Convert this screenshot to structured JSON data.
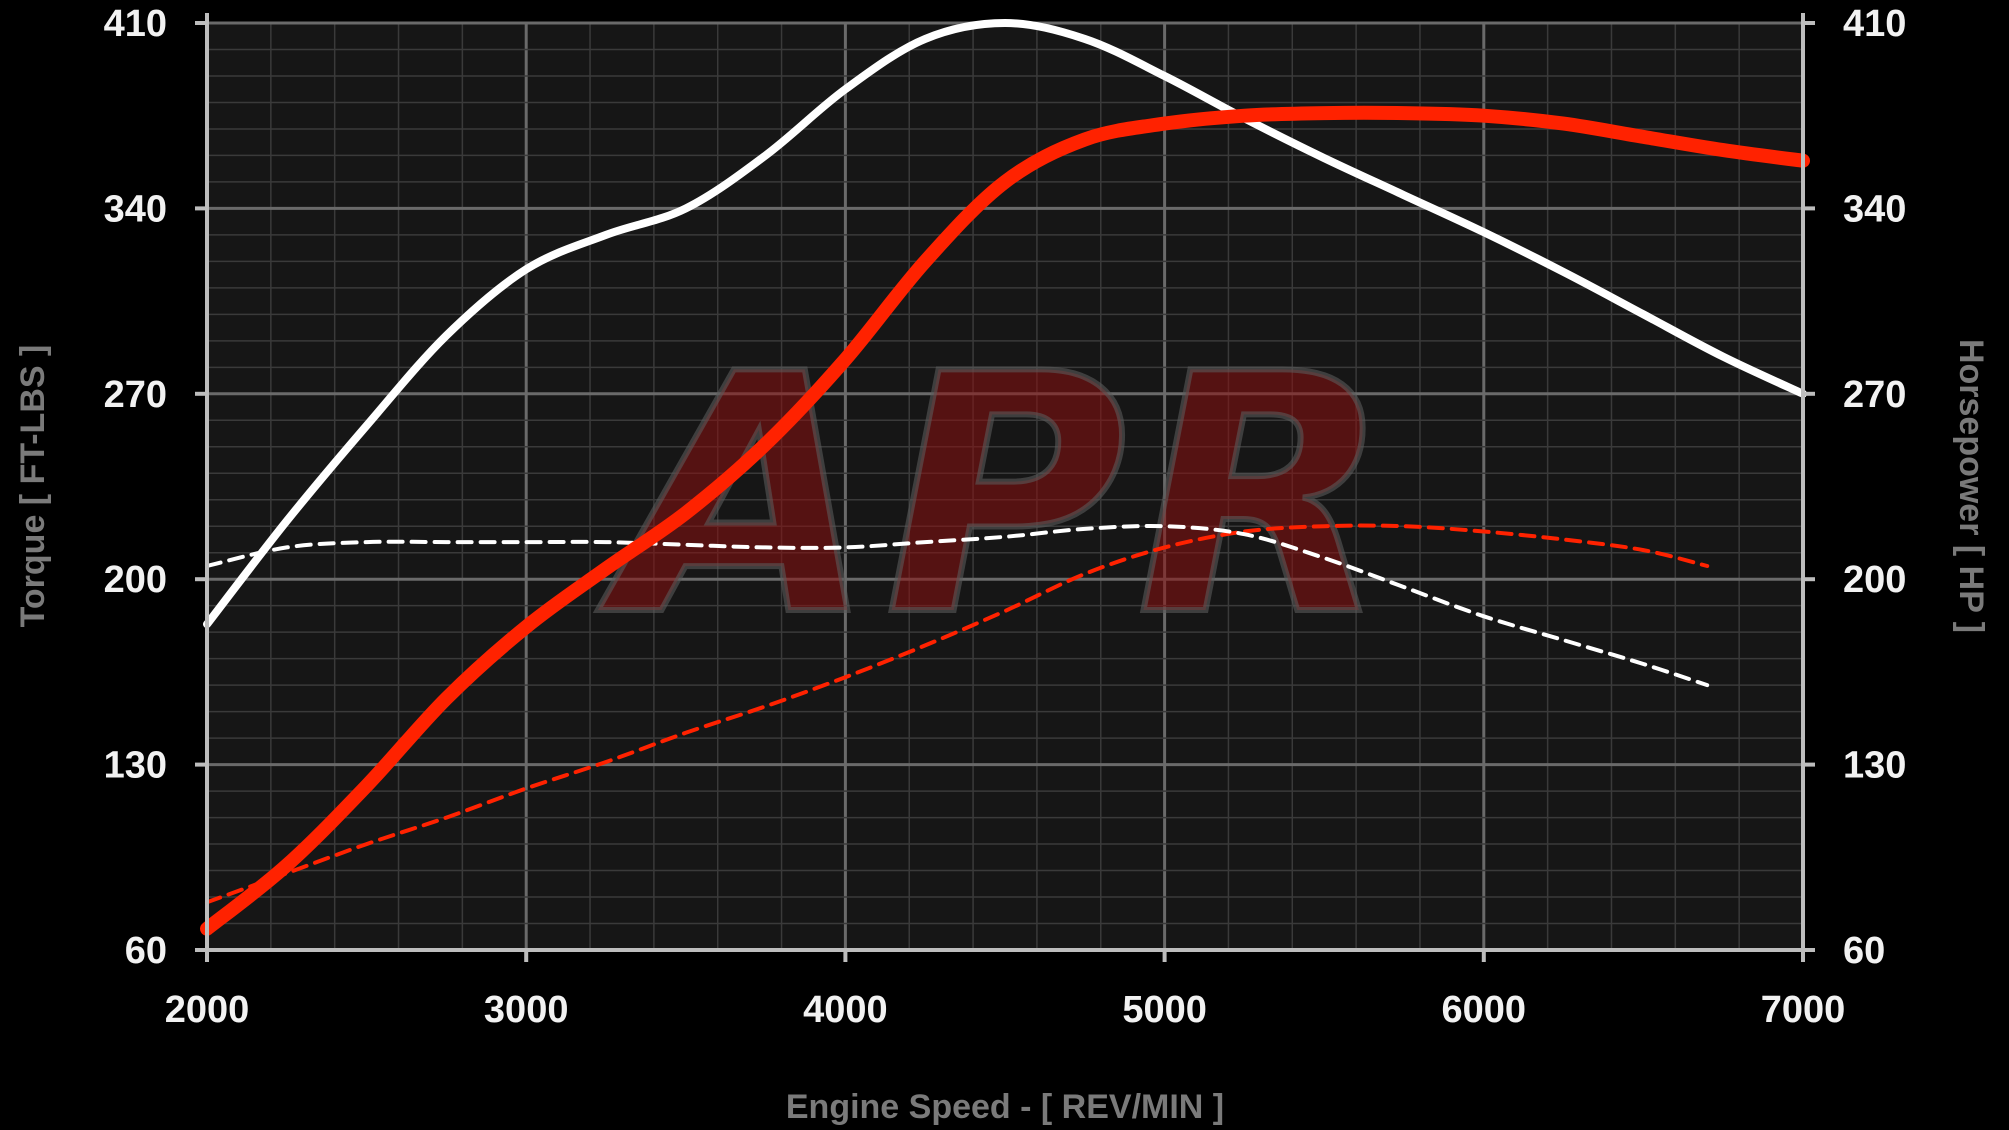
{
  "chart_data": {
    "type": "line",
    "title": "",
    "xlabel": "Engine Speed - [ REV/MIN ]",
    "ylabel_left": "Torque [ FT-LBS ]",
    "ylabel_right": "Horsepower [ HP ]",
    "xlim": [
      2000,
      7000
    ],
    "ylim": [
      60,
      410
    ],
    "x_ticks": [
      "2000",
      "3000",
      "4000",
      "5000",
      "6000",
      "7000"
    ],
    "y_ticks": [
      "60",
      "130",
      "200",
      "270",
      "340",
      "410"
    ],
    "grid": true,
    "watermark": "APR",
    "colors": {
      "background": "#000000",
      "plot": "#161616",
      "white": "#ffffff",
      "red": "#ff2200",
      "grid_major": "#6a6a6a",
      "grid_minor": "#3a3a3a"
    },
    "series": [
      {
        "style": "solid-white",
        "x": [
          2000,
          2250,
          2500,
          2750,
          3000,
          3250,
          3500,
          3750,
          4000,
          4250,
          4500,
          4750,
          5000,
          5250,
          5500,
          5750,
          6000,
          6250,
          6500,
          6750,
          7000
        ],
        "y": [
          183,
          222,
          258,
          292,
          317,
          330,
          340,
          360,
          385,
          404,
          410,
          404,
          390,
          374,
          359,
          345,
          331,
          316,
          300,
          284,
          270
        ]
      },
      {
        "style": "solid-red",
        "x": [
          2000,
          2250,
          2500,
          2750,
          3000,
          3250,
          3500,
          3750,
          4000,
          4250,
          4500,
          4750,
          5000,
          5250,
          5500,
          5750,
          6000,
          6250,
          6500,
          6750,
          7000
        ],
        "y": [
          68,
          92,
          122,
          155,
          182,
          204,
          225,
          251,
          283,
          320,
          350,
          366,
          372,
          375,
          376,
          376,
          375,
          372,
          367,
          362,
          358
        ]
      },
      {
        "style": "dashed-white",
        "x": [
          2000,
          2250,
          2500,
          2750,
          3000,
          3250,
          3500,
          3750,
          4000,
          4250,
          4500,
          4750,
          5000,
          5250,
          5500,
          5750,
          6000,
          6250,
          6500,
          6700
        ],
        "y": [
          205,
          212,
          214,
          214,
          214,
          214,
          213,
          212,
          212,
          214,
          216,
          219,
          220,
          217,
          208,
          197,
          186,
          177,
          168,
          160
        ]
      },
      {
        "style": "dashed-red",
        "x": [
          2000,
          2250,
          2500,
          2750,
          3000,
          3250,
          3500,
          3750,
          4000,
          4250,
          4500,
          4750,
          5000,
          5250,
          5500,
          5750,
          6000,
          6250,
          6500,
          6700
        ],
        "y": [
          78,
          89,
          100,
          110,
          121,
          131,
          142,
          152,
          163,
          175,
          188,
          202,
          212,
          218,
          220,
          220,
          218,
          215,
          211,
          205
        ]
      }
    ]
  }
}
